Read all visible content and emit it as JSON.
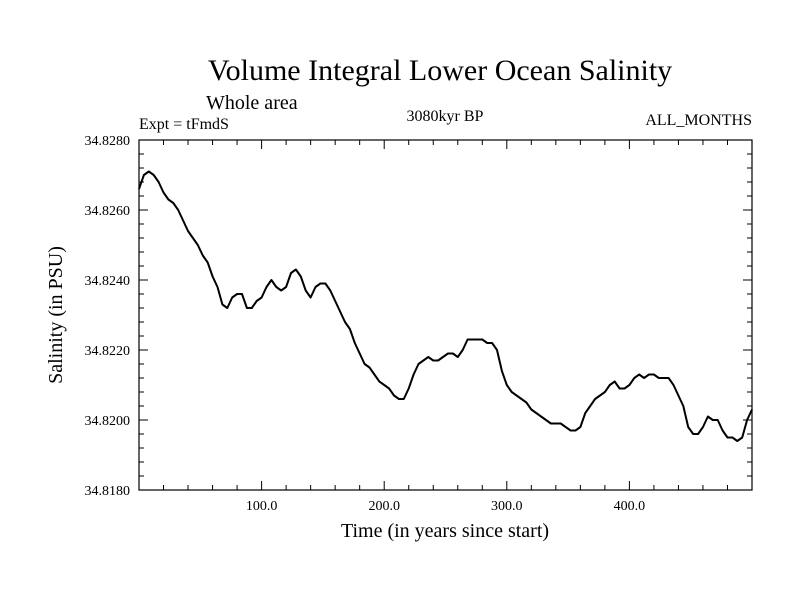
{
  "chart_data": {
    "type": "line",
    "title": "Volume Integral Lower Ocean Salinity",
    "subtitle": "Whole area",
    "experiment_label": "Expt = tFmdS",
    "period_label": "3080kyr BP",
    "months_label": "ALL_MONTHS",
    "xlabel": "Time (in years since start)",
    "ylabel": "Salinity (in PSU)",
    "xlim": [
      0,
      500
    ],
    "ylim": [
      34.818,
      34.828
    ],
    "x_ticks": [
      100,
      200,
      300,
      400
    ],
    "x_tick_labels": [
      "100.0",
      "200.0",
      "300.0",
      "400.0"
    ],
    "y_ticks": [
      34.818,
      34.82,
      34.822,
      34.824,
      34.826,
      34.828
    ],
    "y_tick_labels": [
      "34.8180",
      "34.8200",
      "34.8220",
      "34.8240",
      "34.8260",
      "34.8280"
    ],
    "grid": false,
    "series": [
      {
        "name": "salinity",
        "color": "#000000",
        "x": [
          0,
          4,
          8,
          12,
          16,
          20,
          24,
          28,
          32,
          36,
          40,
          44,
          48,
          52,
          56,
          60,
          64,
          68,
          72,
          76,
          80,
          84,
          88,
          92,
          96,
          100,
          104,
          108,
          112,
          116,
          120,
          124,
          128,
          132,
          136,
          140,
          144,
          148,
          152,
          156,
          160,
          164,
          168,
          172,
          176,
          180,
          184,
          188,
          192,
          196,
          200,
          204,
          208,
          212,
          216,
          220,
          224,
          228,
          232,
          236,
          240,
          244,
          248,
          252,
          256,
          260,
          264,
          268,
          272,
          276,
          280,
          284,
          288,
          292,
          296,
          300,
          304,
          308,
          312,
          316,
          320,
          324,
          328,
          332,
          336,
          340,
          344,
          348,
          352,
          356,
          360,
          364,
          368,
          372,
          376,
          380,
          384,
          388,
          392,
          396,
          400,
          404,
          408,
          412,
          416,
          420,
          424,
          428,
          432,
          436,
          440,
          444,
          448,
          452,
          456,
          460,
          464,
          468,
          472,
          476,
          480,
          484,
          488,
          492,
          496,
          500
        ],
        "values": [
          34.8266,
          34.827,
          34.8271,
          34.827,
          34.8268,
          34.8265,
          34.8263,
          34.8262,
          34.826,
          34.8257,
          34.8254,
          34.8252,
          34.825,
          34.8247,
          34.8245,
          34.8241,
          34.8238,
          34.8233,
          34.8232,
          34.8235,
          34.8236,
          34.8236,
          34.8232,
          34.8232,
          34.8234,
          34.8235,
          34.8238,
          34.824,
          34.8238,
          34.8237,
          34.8238,
          34.8242,
          34.8243,
          34.8241,
          34.8237,
          34.8235,
          34.8238,
          34.8239,
          34.8239,
          34.8237,
          34.8234,
          34.8231,
          34.8228,
          34.8226,
          34.8222,
          34.8219,
          34.8216,
          34.8215,
          34.8213,
          34.8211,
          34.821,
          34.8209,
          34.8207,
          34.8206,
          34.8206,
          34.8209,
          34.8213,
          34.8216,
          34.8217,
          34.8218,
          34.8217,
          34.8217,
          34.8218,
          34.8219,
          34.8219,
          34.8218,
          34.822,
          34.8223,
          34.8223,
          34.8223,
          34.8223,
          34.8222,
          34.8222,
          34.822,
          34.8214,
          34.821,
          34.8208,
          34.8207,
          34.8206,
          34.8205,
          34.8203,
          34.8202,
          34.8201,
          34.82,
          34.8199,
          34.8199,
          34.8199,
          34.8198,
          34.8197,
          34.8197,
          34.8198,
          34.8202,
          34.8204,
          34.8206,
          34.8207,
          34.8208,
          34.821,
          34.8211,
          34.8209,
          34.8209,
          34.821,
          34.8212,
          34.8213,
          34.8212,
          34.8213,
          34.8213,
          34.8212,
          34.8212,
          34.8212,
          34.821,
          34.8207,
          34.8204,
          34.8198,
          34.8196,
          34.8196,
          34.8198,
          34.8201,
          34.82,
          34.82,
          34.8197,
          34.8195,
          34.8195,
          34.8194,
          34.8195,
          34.82,
          34.8203
        ]
      }
    ]
  }
}
